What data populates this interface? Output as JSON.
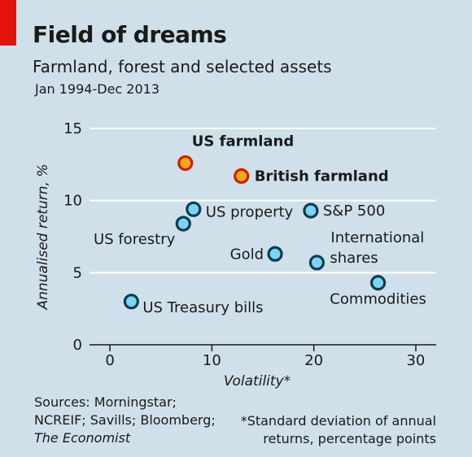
{
  "header": {
    "title": "Field of dreams",
    "subtitle": "Farmland, forest and selected assets",
    "period": "Jan 1994-Dec 2013"
  },
  "footer": {
    "sources_line1": "Sources: Morningstar;",
    "sources_line2": "NCREIF; Savills; Bloomberg;",
    "sources_line3": "The Economist",
    "footnote_line1": "*Standard deviation of annual",
    "footnote_line2": "returns, percentage points"
  },
  "colors": {
    "background": "#cfe0ea",
    "accent": "#e3120b",
    "highlight_fill": "#f5a623",
    "highlight_stroke": "#cc2200",
    "point_fill": "#7fd3f0",
    "point_stroke": "#0b3d55",
    "grid": "#ffffff"
  },
  "chart_data": {
    "type": "scatter",
    "title": "Field of dreams",
    "subtitle": "Farmland, forest and selected assets",
    "xlabel": "Volatility*",
    "ylabel": "Annualised return, %",
    "xlim": [
      -2,
      32
    ],
    "ylim": [
      0,
      15
    ],
    "xticks": [
      0,
      10,
      20,
      30
    ],
    "yticks": [
      0,
      5,
      10,
      15
    ],
    "grid": "horizontal",
    "points": [
      {
        "label": "US farmland",
        "x": 7.4,
        "y": 12.6,
        "highlight": true
      },
      {
        "label": "British farmland",
        "x": 12.9,
        "y": 11.7,
        "highlight": true
      },
      {
        "label": "US property",
        "x": 8.2,
        "y": 9.4,
        "highlight": false
      },
      {
        "label": "US forestry",
        "x": 7.2,
        "y": 8.4,
        "highlight": false
      },
      {
        "label": "S&P 500",
        "x": 19.7,
        "y": 9.3,
        "highlight": false
      },
      {
        "label": "Gold",
        "x": 16.2,
        "y": 6.3,
        "highlight": false
      },
      {
        "label": "International shares",
        "x": 20.3,
        "y": 5.7,
        "highlight": false
      },
      {
        "label": "Commodities",
        "x": 26.3,
        "y": 4.3,
        "highlight": false
      },
      {
        "label": "US Treasury bills",
        "x": 2.1,
        "y": 3.0,
        "highlight": false
      }
    ]
  }
}
